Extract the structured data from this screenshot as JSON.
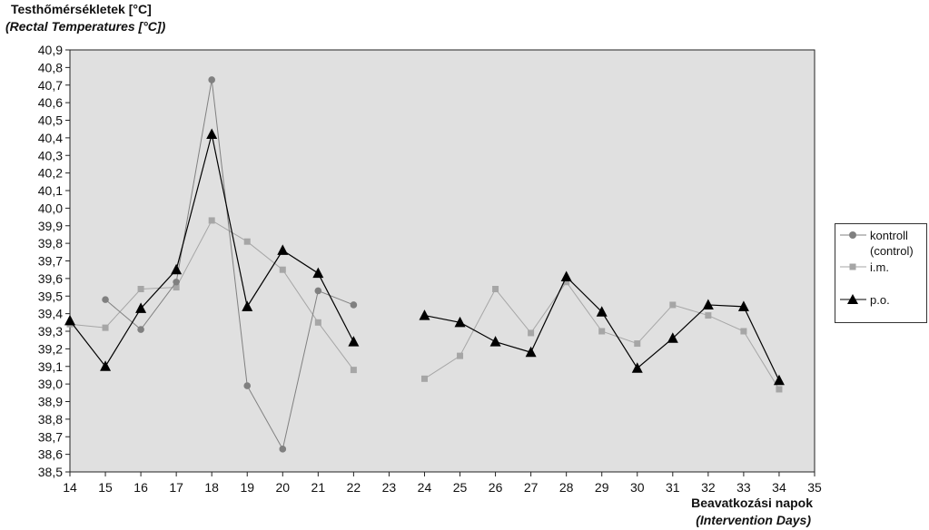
{
  "chart_data": {
    "type": "line",
    "ylabel": "Testhőmérsékletek [°C]",
    "ylabel_en": "(Rectal Temperatures [°C])",
    "xlabel": "Beavatkozási napok",
    "xlabel_en": "(Intervention Days)",
    "xlim": [
      14,
      35
    ],
    "ylim": [
      38.5,
      40.9
    ],
    "xticks": [
      "14",
      "15",
      "16",
      "17",
      "18",
      "19",
      "20",
      "21",
      "22",
      "23",
      "24",
      "25",
      "26",
      "27",
      "28",
      "29",
      "30",
      "31",
      "32",
      "33",
      "34",
      "35"
    ],
    "yticks": [
      "40,9",
      "40,8",
      "40,7",
      "40,6",
      "40,5",
      "40,4",
      "40,3",
      "40,2",
      "40,1",
      "40,0",
      "39,9",
      "39,8",
      "39,7",
      "39,6",
      "39,5",
      "39,4",
      "39,3",
      "39,2",
      "39,1",
      "39,0",
      "38,9",
      "38,8",
      "38,7",
      "38,6",
      "38,5"
    ],
    "grid": false,
    "legend_position": "right",
    "series": [
      {
        "name": "kontroll",
        "name2": "(control)",
        "marker": "circle",
        "color": "#808080",
        "x": [
          15,
          16,
          17,
          18,
          19,
          20,
          21,
          22
        ],
        "y": [
          39.48,
          39.31,
          39.58,
          40.73,
          38.99,
          38.63,
          39.53,
          39.45
        ]
      },
      {
        "name": "i.m.",
        "marker": "square",
        "color": "#a6a6a6",
        "x": [
          14,
          15,
          16,
          17,
          18,
          19,
          20,
          21,
          22,
          24,
          25,
          26,
          27,
          28,
          29,
          30,
          31,
          32,
          33,
          34
        ],
        "y": [
          39.34,
          39.32,
          39.54,
          39.55,
          39.93,
          39.81,
          39.65,
          39.35,
          39.08,
          39.03,
          39.16,
          39.54,
          39.29,
          39.58,
          39.3,
          39.23,
          39.45,
          39.39,
          39.3,
          38.97
        ]
      },
      {
        "name": "p.o.",
        "marker": "triangle",
        "color": "#000000",
        "x": [
          14,
          15,
          16,
          17,
          18,
          19,
          20,
          21,
          22,
          24,
          25,
          26,
          27,
          28,
          29,
          30,
          31,
          32,
          33,
          34
        ],
        "y": [
          39.36,
          39.1,
          39.43,
          39.65,
          40.42,
          39.44,
          39.76,
          39.63,
          39.24,
          39.39,
          39.35,
          39.24,
          39.18,
          39.61,
          39.41,
          39.09,
          39.26,
          39.45,
          39.44,
          39.02
        ]
      }
    ]
  }
}
